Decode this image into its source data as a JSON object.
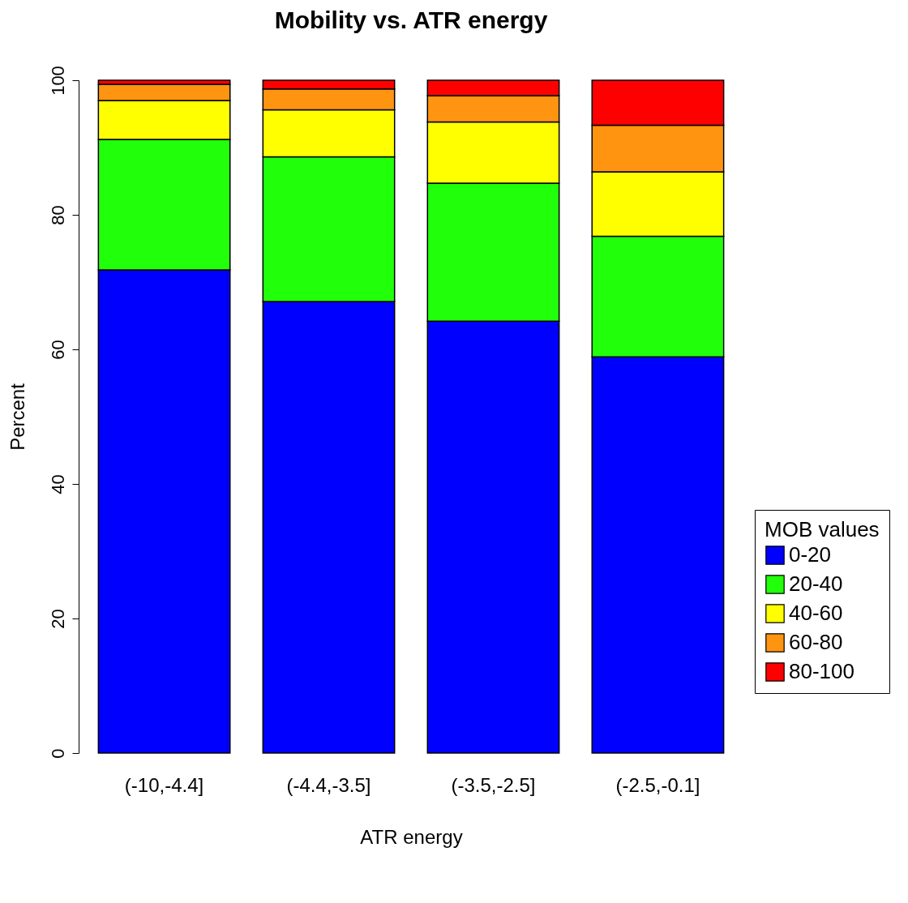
{
  "chart_data": {
    "type": "bar",
    "title": "Mobility vs. ATR energy",
    "xlabel": "ATR energy",
    "ylabel": "Percent",
    "legend_title": "MOB values",
    "categories": [
      "(-10,-4.4]",
      "(-4.4,-3.5]",
      "(-3.5,-2.5]",
      "(-2.5,-0.1]"
    ],
    "stacked": true,
    "series": [
      {
        "name": "0-20",
        "color": "#0000ff",
        "values": [
          71.8,
          67.1,
          64.2,
          58.9
        ]
      },
      {
        "name": "20-40",
        "color": "#22ff0b",
        "values": [
          19.4,
          21.5,
          20.5,
          17.9
        ]
      },
      {
        "name": "40-60",
        "color": "#ffff00",
        "values": [
          5.8,
          7.0,
          9.1,
          9.6
        ]
      },
      {
        "name": "60-80",
        "color": "#ff9410",
        "values": [
          2.4,
          3.1,
          3.9,
          6.9
        ]
      },
      {
        "name": "80-100",
        "color": "#ff0000",
        "values": [
          0.6,
          1.3,
          2.3,
          6.7
        ]
      }
    ],
    "ylim": [
      0,
      100
    ],
    "yticks": [
      0,
      20,
      40,
      60,
      80,
      100
    ],
    "grid": false,
    "legend": "bottom right"
  }
}
